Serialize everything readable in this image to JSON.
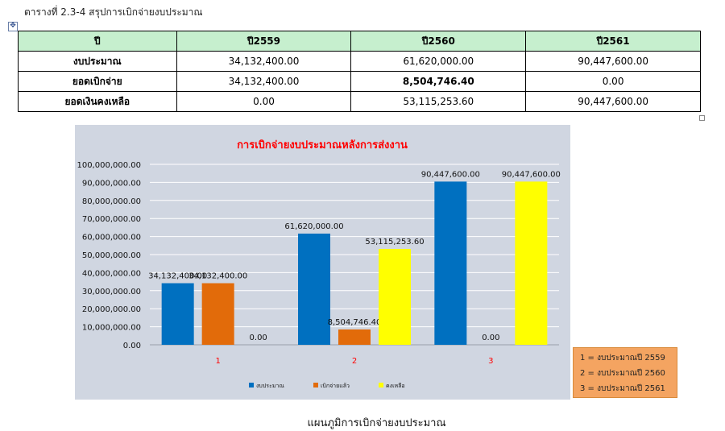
{
  "caption": "ตารางที่ 2.3-4 สรุปการเบิกจ่ายงบประมาณ",
  "move_handle_icon": "move-arrows-icon",
  "table": {
    "headers": [
      "ปี",
      "ปี2559",
      "ปี2560",
      "ปี2561"
    ],
    "rows": [
      {
        "label": "งบประมาณ",
        "values": [
          "34,132,400.00",
          "61,620,000.00",
          "90,447,600.00"
        ]
      },
      {
        "label": "ยอดเบิกจ่าย",
        "values": [
          "34,132,400.00",
          "8,504,746.40",
          "0.00"
        ]
      },
      {
        "label": "ยอดเงินคงเหลือ",
        "values": [
          "0.00",
          "53,115,253.60",
          "90,447,600.00"
        ]
      }
    ]
  },
  "chart_data": {
    "type": "bar",
    "title": "การเบิกจ่ายงบประมาณหลังการส่งงาน",
    "categories": [
      "1",
      "2",
      "3"
    ],
    "ylim": [
      0,
      100000000
    ],
    "ytick_step": 10000000,
    "ytick_labels": [
      "0.00",
      "10,000,000.00",
      "20,000,000.00",
      "30,000,000.00",
      "40,000,000.00",
      "50,000,000.00",
      "60,000,000.00",
      "70,000,000.00",
      "80,000,000.00",
      "90,000,000.00",
      "100,000,000.00"
    ],
    "grid": true,
    "legend_position": "bottom",
    "series": [
      {
        "name": "งบประมาณ",
        "color": "#0070c0",
        "values": [
          34132400,
          61620000,
          90447600
        ],
        "labels": [
          "34,132,400.00",
          "61,620,000.00",
          "90,447,600.00"
        ]
      },
      {
        "name": "เบิกจ่ายแล้ว",
        "color": "#e26b0a",
        "values": [
          34132400,
          8504746.4,
          0
        ],
        "labels": [
          "34,132,400.00",
          "8,504,746.40",
          "0.00"
        ]
      },
      {
        "name": "คงเหลือ",
        "color": "#ffff00",
        "values": [
          0,
          53115253.6,
          90447600
        ],
        "labels": [
          "0.00",
          "53,115,253.60",
          "90,447,600.00"
        ]
      }
    ]
  },
  "colors": {
    "title": "#ff0000",
    "category_label": "#ff0000",
    "table_header_bg": "#c6efce",
    "chart_bg": "#d0d6e1",
    "note_bg": "#f4a461"
  },
  "notes": [
    "1 = งบประมาณปี 2559",
    "2 = งบประมาณปี 2560",
    "3 = งบประมาณปี 2561"
  ],
  "bottom_caption": "แผนภูมิการเบิกจ่ายงบประมาณ"
}
